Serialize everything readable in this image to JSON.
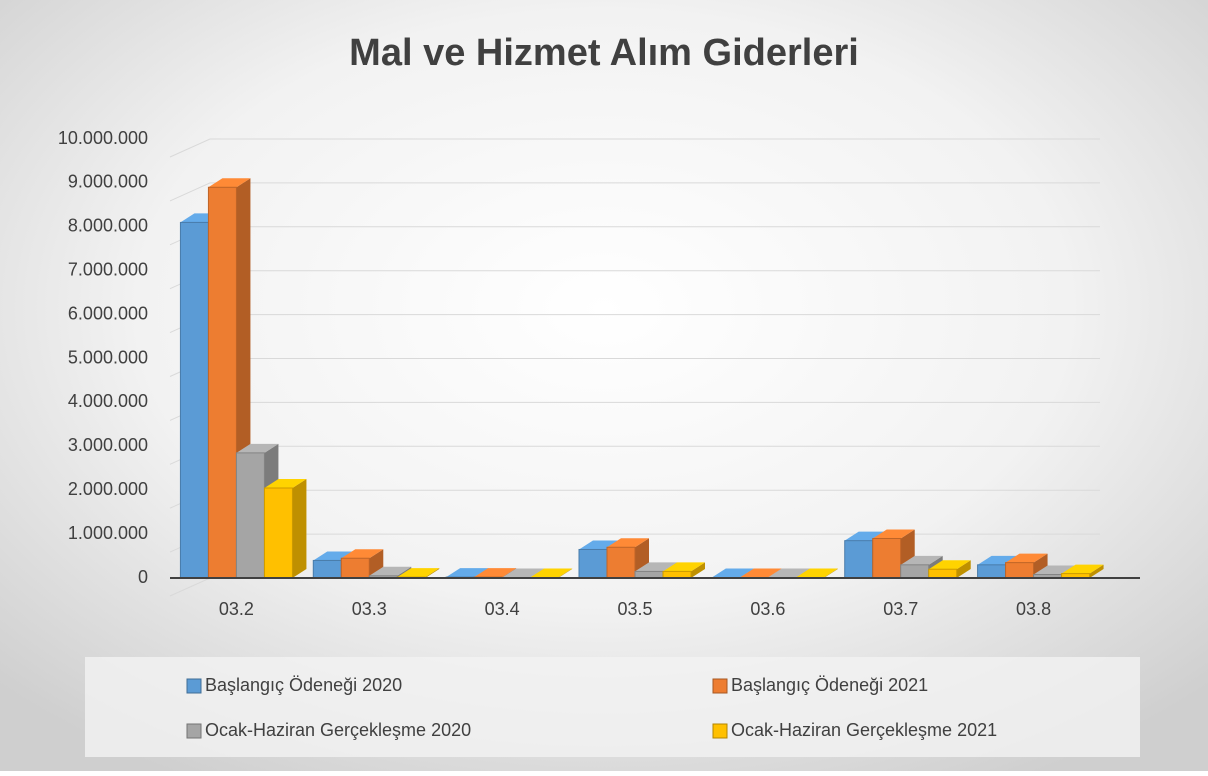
{
  "chart_data": {
    "type": "bar",
    "title": "Mal ve Hizmet Alım Giderleri",
    "categories": [
      "03.2",
      "03.3",
      "03.4",
      "03.5",
      "03.6",
      "03.7",
      "03.8"
    ],
    "series": [
      {
        "name": "Başlangıç Ödeneği 2020",
        "color": "#5b9bd5",
        "values": [
          8100000,
          400000,
          20000,
          650000,
          10000,
          850000,
          300000
        ]
      },
      {
        "name": "Başlangıç Ödeneği 2021",
        "color": "#ed7d31",
        "values": [
          8900000,
          450000,
          20000,
          700000,
          10000,
          900000,
          350000
        ]
      },
      {
        "name": "Ocak-Haziran Gerçekleşme 2020",
        "color": "#a5a5a5",
        "values": [
          2850000,
          50000,
          10000,
          150000,
          10000,
          300000,
          80000
        ]
      },
      {
        "name": "Ocak-Haziran Gerçekleşme 2021",
        "color": "#ffc000",
        "values": [
          2050000,
          20000,
          10000,
          150000,
          10000,
          200000,
          100000
        ]
      }
    ],
    "ylim": [
      0,
      10000000
    ],
    "yticks": [
      0,
      {
        "value": 1000000,
        "label": "1.000.000"
      },
      {
        "value": 2000000,
        "label": "2.000.000"
      },
      {
        "value": 3000000,
        "label": "3.000.000"
      },
      {
        "value": 4000000,
        "label": "4.000.000"
      },
      {
        "value": 5000000,
        "label": "5.000.000"
      },
      {
        "value": 6000000,
        "label": "6.000.000"
      },
      {
        "value": 7000000,
        "label": "7.000.000"
      },
      {
        "value": 8000000,
        "label": "8.000.000"
      },
      {
        "value": 9000000,
        "label": "9.000.000"
      },
      {
        "value": 10000000,
        "label": "10.000.000"
      }
    ],
    "grid": true,
    "legend": "bottom"
  }
}
